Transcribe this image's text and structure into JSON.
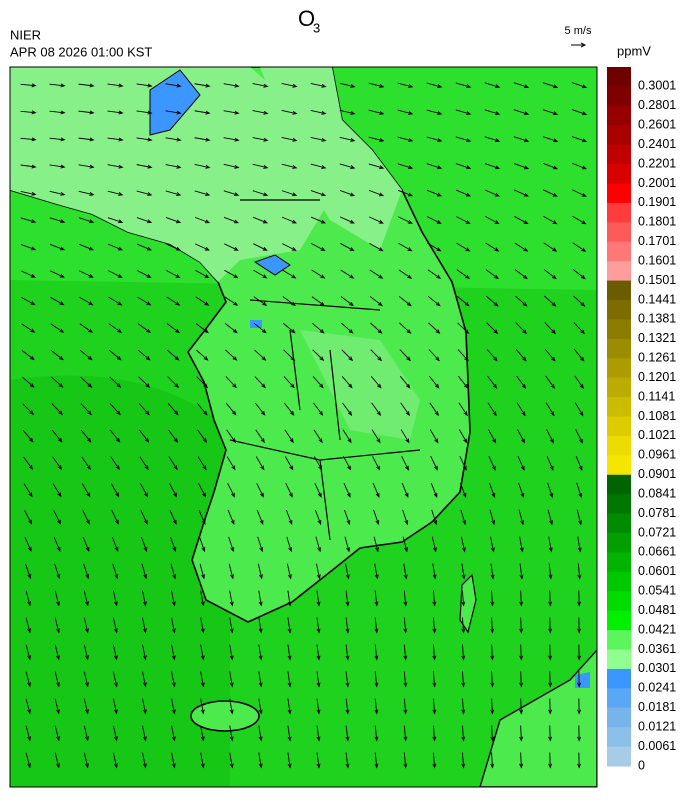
{
  "title": {
    "main": "O",
    "subscript": "3"
  },
  "source": "NIER",
  "timestamp": "APR 08 2026 01:00 KST",
  "wind_scale": {
    "label": "5 m/s"
  },
  "legend": {
    "unit": "ppmV",
    "labels": [
      "0.3001",
      "0.2801",
      "0.2601",
      "0.2401",
      "0.2201",
      "0.2001",
      "0.1901",
      "0.1801",
      "0.1701",
      "0.1601",
      "0.1501",
      "0.1441",
      "0.1381",
      "0.1321",
      "0.1261",
      "0.1201",
      "0.1141",
      "0.1081",
      "0.1021",
      "0.0961",
      "0.0901",
      "0.0841",
      "0.0781",
      "0.0721",
      "0.0661",
      "0.0601",
      "0.0541",
      "0.0481",
      "0.0421",
      "0.0361",
      "0.0301",
      "0.0241",
      "0.0181",
      "0.0121",
      "0.0061",
      "0"
    ],
    "colors": [
      "#6e0000",
      "#800000",
      "#960000",
      "#ab0000",
      "#c00000",
      "#d80000",
      "#ff0000",
      "#ff3c3c",
      "#ff5a5a",
      "#ff7878",
      "#ff9c9c",
      "#6b5c00",
      "#7d6c00",
      "#8c7c00",
      "#9c8c00",
      "#ac9c00",
      "#bcac00",
      "#ccbc00",
      "#dccc00",
      "#ecdc00",
      "#f5e600",
      "#006400",
      "#007800",
      "#008c00",
      "#00a000",
      "#00b400",
      "#00c800",
      "#00dc00",
      "#00f000",
      "#5cf55c",
      "#90ff90",
      "#3c96ff",
      "#5aa8f5",
      "#78b4ec",
      "#8cc0e8",
      "#a6cce6"
    ]
  }
}
